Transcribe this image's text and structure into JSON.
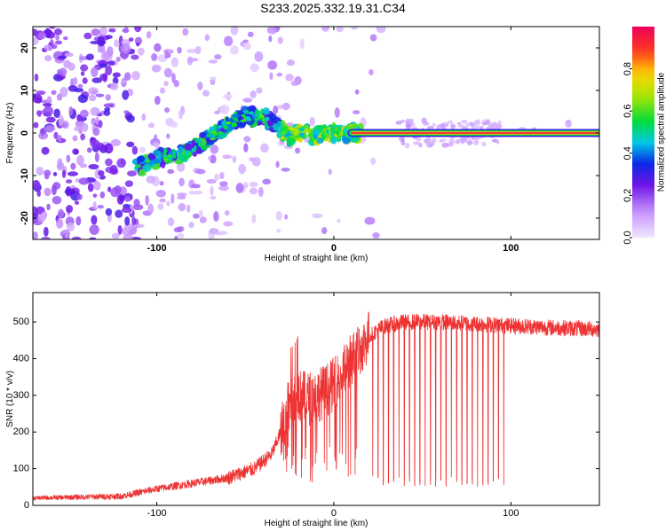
{
  "title": "S233.2025.332.19.31.C34",
  "colors": {
    "snr_line": "#ee3333",
    "signal_line": "#cc2222"
  },
  "chart_data": [
    {
      "type": "heatmap",
      "name": "spectrogram",
      "xlabel": "Height of straight line (km)",
      "ylabel": "Frequency (Hz)",
      "xlim": [
        -170,
        150
      ],
      "ylim": [
        -25,
        25
      ],
      "xticks": [
        {
          "value": -100,
          "label": "-100"
        },
        {
          "value": 0,
          "label": "0"
        },
        {
          "value": 100,
          "label": "100"
        }
      ],
      "yticks": [
        {
          "value": 20,
          "label": "20"
        },
        {
          "value": 10,
          "label": "10"
        },
        {
          "value": 0,
          "label": "0"
        },
        {
          "value": -10,
          "label": "-10"
        },
        {
          "value": -20,
          "label": "-20"
        }
      ],
      "ridge": {
        "description": "dominant frequency track",
        "x": [
          -110,
          -100,
          -90,
          -80,
          -70,
          -60,
          -50,
          -40,
          -30,
          -25,
          -20,
          -15,
          -10,
          -5,
          0,
          10,
          20,
          150
        ],
        "y": [
          -8,
          -6,
          -5,
          -4,
          -1,
          2,
          4,
          4,
          1,
          -1,
          0,
          0,
          -1,
          0,
          0,
          0,
          0,
          0
        ]
      },
      "flat_line": {
        "x_start": 10,
        "x_end": 150,
        "frequency": 0,
        "amplitude": 1.0
      },
      "colorbar": {
        "label": "Normalized spectral amplitude",
        "range": [
          0,
          1
        ],
        "ticks": [
          {
            "value": 0.0,
            "label": "0.0"
          },
          {
            "value": 0.2,
            "label": "0.2"
          },
          {
            "value": 0.4,
            "label": "0.4"
          },
          {
            "value": 0.6,
            "label": "0.6"
          },
          {
            "value": 0.8,
            "label": "0.8"
          }
        ]
      }
    },
    {
      "type": "line",
      "name": "snr",
      "xlabel": "Height of straight line (km)",
      "ylabel": "SNR (10 * v/v)",
      "xlim": [
        -170,
        150
      ],
      "ylim": [
        0,
        580
      ],
      "xticks": [
        {
          "value": -100,
          "label": "-100"
        },
        {
          "value": 0,
          "label": "0"
        },
        {
          "value": 100,
          "label": "100"
        }
      ],
      "yticks": [
        {
          "value": 0,
          "label": "0"
        },
        {
          "value": 100,
          "label": "100"
        },
        {
          "value": 200,
          "label": "200"
        },
        {
          "value": 300,
          "label": "300"
        },
        {
          "value": 400,
          "label": "400"
        },
        {
          "value": 500,
          "label": "500"
        }
      ],
      "envelope": {
        "x": [
          -170,
          -120,
          -100,
          -80,
          -60,
          -45,
          -35,
          -30,
          -25,
          -20,
          -15,
          -10,
          -5,
          0,
          5,
          10,
          15,
          20,
          25,
          30,
          40,
          60,
          80,
          100,
          120,
          150
        ],
        "y": [
          20,
          25,
          45,
          60,
          75,
          100,
          140,
          200,
          280,
          300,
          290,
          300,
          310,
          330,
          360,
          400,
          430,
          460,
          480,
          490,
          500,
          500,
          495,
          490,
          485,
          480
        ]
      },
      "dropouts": {
        "x_start": 22,
        "x_end": 96,
        "min_value": 50,
        "count": 26
      }
    }
  ]
}
